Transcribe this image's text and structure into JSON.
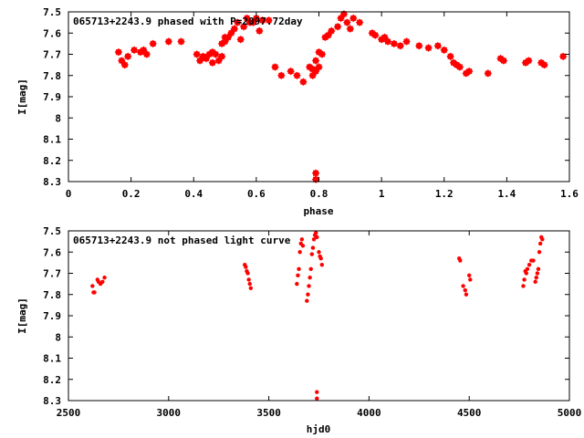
{
  "chart_data": [
    {
      "type": "scatter",
      "title": "065713+2243.9 phased with P=2097.72day",
      "xlabel": "phase",
      "ylabel": "I[mag]",
      "xlim": [
        0,
        1.6
      ],
      "ylim": [
        7.5,
        8.3
      ],
      "y_inverted": true,
      "x_ticks": [
        0,
        0.2,
        0.4,
        0.6,
        0.8,
        1,
        1.2,
        1.4,
        1.6
      ],
      "x_tick_labels": [
        "0",
        "0.2",
        "0.4",
        "0.6",
        "0.8",
        "1",
        "1.2",
        "1.4",
        "1.6"
      ],
      "y_ticks": [
        7.5,
        7.6,
        7.7,
        7.8,
        7.9,
        8,
        8.1,
        8.2,
        8.3
      ],
      "y_tick_labels": [
        "7.5",
        "7.6",
        "7.7",
        "7.8",
        "7.9",
        "8",
        "8.1",
        "8.2",
        "8.3"
      ],
      "marker_color": "#ff0000",
      "series": [
        {
          "points": [
            [
              0.16,
              7.69
            ],
            [
              0.17,
              7.73
            ],
            [
              0.18,
              7.75
            ],
            [
              0.19,
              7.71
            ],
            [
              0.21,
              7.68
            ],
            [
              0.23,
              7.69
            ],
            [
              0.24,
              7.68
            ],
            [
              0.25,
              7.7
            ],
            [
              0.27,
              7.65
            ],
            [
              0.32,
              7.64
            ],
            [
              0.36,
              7.64
            ],
            [
              0.41,
              7.7
            ],
            [
              0.42,
              7.73
            ],
            [
              0.43,
              7.71
            ],
            [
              0.44,
              7.72
            ],
            [
              0.45,
              7.7
            ],
            [
              0.46,
              7.69
            ],
            [
              0.46,
              7.74
            ],
            [
              0.47,
              7.7
            ],
            [
              0.48,
              7.73
            ],
            [
              0.49,
              7.71
            ],
            [
              0.49,
              7.65
            ],
            [
              0.5,
              7.64
            ],
            [
              0.5,
              7.62
            ],
            [
              0.51,
              7.62
            ],
            [
              0.52,
              7.6
            ],
            [
              0.53,
              7.58
            ],
            [
              0.54,
              7.55
            ],
            [
              0.55,
              7.63
            ],
            [
              0.56,
              7.57
            ],
            [
              0.57,
              7.53
            ],
            [
              0.58,
              7.55
            ],
            [
              0.59,
              7.55
            ],
            [
              0.6,
              7.53
            ],
            [
              0.61,
              7.59
            ],
            [
              0.62,
              7.54
            ],
            [
              0.64,
              7.54
            ],
            [
              0.66,
              7.76
            ],
            [
              0.68,
              7.8
            ],
            [
              0.71,
              7.78
            ],
            [
              0.73,
              7.8
            ],
            [
              0.75,
              7.83
            ],
            [
              0.77,
              7.76
            ],
            [
              0.78,
              7.77
            ],
            [
              0.78,
              7.8
            ],
            [
              0.79,
              7.73
            ],
            [
              0.79,
              7.78
            ],
            [
              0.8,
              7.76
            ],
            [
              0.8,
              7.69
            ],
            [
              0.81,
              7.7
            ],
            [
              0.82,
              7.62
            ],
            [
              0.83,
              7.61
            ],
            [
              0.84,
              7.59
            ],
            [
              0.86,
              7.57
            ],
            [
              0.87,
              7.53
            ],
            [
              0.88,
              7.51
            ],
            [
              0.89,
              7.55
            ],
            [
              0.9,
              7.58
            ],
            [
              0.91,
              7.53
            ],
            [
              0.93,
              7.55
            ],
            [
              0.97,
              7.6
            ],
            [
              0.98,
              7.61
            ],
            [
              1.0,
              7.63
            ],
            [
              1.01,
              7.62
            ],
            [
              1.02,
              7.64
            ],
            [
              1.04,
              7.65
            ],
            [
              1.06,
              7.66
            ],
            [
              1.08,
              7.64
            ],
            [
              1.12,
              7.66
            ],
            [
              1.15,
              7.67
            ],
            [
              1.18,
              7.66
            ],
            [
              1.2,
              7.68
            ],
            [
              1.22,
              7.71
            ],
            [
              1.23,
              7.74
            ],
            [
              1.24,
              7.75
            ],
            [
              1.25,
              7.76
            ],
            [
              1.27,
              7.79
            ],
            [
              1.28,
              7.78
            ],
            [
              1.34,
              7.79
            ],
            [
              1.38,
              7.72
            ],
            [
              1.39,
              7.73
            ],
            [
              1.46,
              7.74
            ],
            [
              1.47,
              7.73
            ],
            [
              1.51,
              7.74
            ],
            [
              1.52,
              7.75
            ],
            [
              1.58,
              7.71
            ],
            [
              0.79,
              8.26
            ],
            [
              0.79,
              8.29
            ]
          ]
        }
      ]
    },
    {
      "type": "scatter",
      "title": "065713+2243.9 not phased light curve",
      "xlabel": "hjd0",
      "ylabel": "I[mag]",
      "xlim": [
        2500,
        5000
      ],
      "ylim": [
        7.5,
        8.3
      ],
      "y_inverted": true,
      "x_ticks": [
        2500,
        3000,
        3500,
        4000,
        4500,
        5000
      ],
      "x_tick_labels": [
        "2500",
        "3000",
        "3500",
        "4000",
        "4500",
        "5000"
      ],
      "y_ticks": [
        7.5,
        7.6,
        7.7,
        7.8,
        7.9,
        8,
        8.1,
        8.2,
        8.3
      ],
      "y_tick_labels": [
        "7.5",
        "7.6",
        "7.7",
        "7.8",
        "7.9",
        "8",
        "8.1",
        "8.2",
        "8.3"
      ],
      "marker_color": "#ff0000",
      "series": [
        {
          "points": [
            [
              2620,
              7.76
            ],
            [
              2625,
              7.79
            ],
            [
              2630,
              7.79
            ],
            [
              2645,
              7.73
            ],
            [
              2650,
              7.74
            ],
            [
              2660,
              7.75
            ],
            [
              2670,
              7.74
            ],
            [
              2680,
              7.72
            ],
            [
              3380,
              7.66
            ],
            [
              3385,
              7.67
            ],
            [
              3390,
              7.69
            ],
            [
              3395,
              7.7
            ],
            [
              3400,
              7.73
            ],
            [
              3405,
              7.75
            ],
            [
              3410,
              7.77
            ],
            [
              3640,
              7.75
            ],
            [
              3645,
              7.71
            ],
            [
              3650,
              7.68
            ],
            [
              3655,
              7.6
            ],
            [
              3660,
              7.56
            ],
            [
              3665,
              7.54
            ],
            [
              3670,
              7.57
            ],
            [
              3690,
              7.83
            ],
            [
              3695,
              7.8
            ],
            [
              3700,
              7.76
            ],
            [
              3705,
              7.72
            ],
            [
              3710,
              7.68
            ],
            [
              3715,
              7.61
            ],
            [
              3720,
              7.58
            ],
            [
              3725,
              7.54
            ],
            [
              3730,
              7.52
            ],
            [
              3735,
              7.51
            ],
            [
              3740,
              7.53
            ],
            [
              3750,
              7.6
            ],
            [
              3755,
              7.62
            ],
            [
              3760,
              7.63
            ],
            [
              3765,
              7.66
            ],
            [
              4450,
              7.63
            ],
            [
              4455,
              7.64
            ],
            [
              4470,
              7.76
            ],
            [
              4480,
              7.78
            ],
            [
              4485,
              7.8
            ],
            [
              4500,
              7.71
            ],
            [
              4505,
              7.73
            ],
            [
              4770,
              7.76
            ],
            [
              4775,
              7.73
            ],
            [
              4780,
              7.69
            ],
            [
              4785,
              7.7
            ],
            [
              4790,
              7.68
            ],
            [
              4800,
              7.66
            ],
            [
              4810,
              7.64
            ],
            [
              4820,
              7.64
            ],
            [
              4830,
              7.74
            ],
            [
              4835,
              7.72
            ],
            [
              4840,
              7.7
            ],
            [
              4845,
              7.68
            ],
            [
              4850,
              7.6
            ],
            [
              4855,
              7.56
            ],
            [
              4860,
              7.53
            ],
            [
              4865,
              7.54
            ],
            [
              3740,
              8.26
            ],
            [
              3740,
              8.29
            ]
          ]
        }
      ]
    }
  ]
}
